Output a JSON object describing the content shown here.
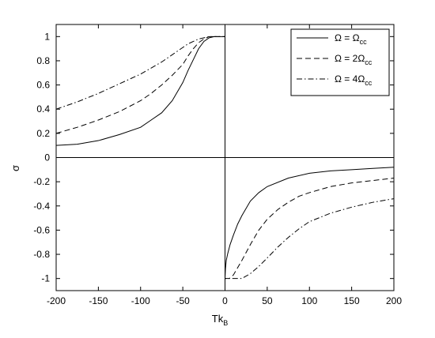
{
  "chart_data": {
    "type": "line",
    "xlabel": "Tk",
    "xlabel_sub": "B",
    "ylabel": "σ",
    "xlim": [
      -200,
      200
    ],
    "ylim": [
      -1.1,
      1.1
    ],
    "xticks": [
      -200,
      -150,
      -100,
      -50,
      0,
      50,
      100,
      150,
      200
    ],
    "yticks": [
      -1,
      -0.8,
      -0.6,
      -0.4,
      -0.2,
      0,
      0.2,
      0.4,
      0.6,
      0.8,
      1
    ],
    "grid": false,
    "legend_position": "top-right",
    "series": [
      {
        "name": "Ω = Ω_cc",
        "legend": {
          "lhs": "Ω = Ω",
          "sub": "cc"
        },
        "style": "solid",
        "x": [
          -200,
          -175,
          -150,
          -125,
          -100,
          -87.5,
          -75,
          -62.5,
          -50,
          -43.75,
          -37.5,
          -31.25,
          -25,
          -18.75,
          -12.5,
          -6.25,
          0,
          0,
          0.5,
          1.5,
          3,
          6,
          10,
          15,
          20,
          30,
          40,
          50,
          75,
          100,
          125,
          150,
          175,
          200
        ],
        "y": [
          0.1,
          0.11,
          0.14,
          0.19,
          0.25,
          0.31,
          0.37,
          0.47,
          0.62,
          0.72,
          0.81,
          0.9,
          0.96,
          0.99,
          1.0,
          1.0,
          1.0,
          -1.0,
          -0.92,
          -0.85,
          -0.8,
          -0.72,
          -0.64,
          -0.55,
          -0.48,
          -0.36,
          -0.29,
          -0.24,
          -0.17,
          -0.13,
          -0.11,
          -0.1,
          -0.09,
          -0.08
        ]
      },
      {
        "name": "Ω = 2Ω_cc",
        "legend": {
          "lhs": "Ω = 2Ω",
          "sub": "cc"
        },
        "style": "dashed",
        "x": [
          -200,
          -175,
          -150,
          -125,
          -100,
          -87.5,
          -75,
          -62.5,
          -50,
          -43.75,
          -37.5,
          -31.25,
          -25,
          -18.75,
          -12.5,
          -6.25,
          0,
          0,
          5,
          10,
          20,
          30,
          40,
          50,
          62.5,
          75,
          87.5,
          100,
          125,
          150,
          175,
          200
        ],
        "y": [
          0.2,
          0.25,
          0.31,
          0.38,
          0.47,
          0.53,
          0.6,
          0.68,
          0.77,
          0.84,
          0.9,
          0.95,
          0.98,
          1.0,
          1.0,
          1.0,
          1.0,
          -1.0,
          -1.0,
          -0.97,
          -0.85,
          -0.72,
          -0.6,
          -0.51,
          -0.43,
          -0.37,
          -0.32,
          -0.29,
          -0.24,
          -0.21,
          -0.19,
          -0.17
        ]
      },
      {
        "name": "Ω = 4Ω_cc",
        "legend": {
          "lhs": "Ω = 4Ω",
          "sub": "cc"
        },
        "style": "dashdot",
        "x": [
          -200,
          -175,
          -150,
          -125,
          -100,
          -87.5,
          -75,
          -62.5,
          -50,
          -43.75,
          -37.5,
          -31.25,
          -25,
          -18.75,
          -12.5,
          -6.25,
          0,
          0,
          5,
          10,
          15,
          20,
          25,
          30,
          40,
          50,
          62.5,
          75,
          87.5,
          100,
          125,
          150,
          175,
          200
        ],
        "y": [
          0.4,
          0.46,
          0.53,
          0.61,
          0.69,
          0.74,
          0.79,
          0.85,
          0.91,
          0.94,
          0.96,
          0.98,
          0.99,
          1.0,
          1.0,
          1.0,
          1.0,
          -1.0,
          -1.0,
          -1.0,
          -1.0,
          -1.0,
          -0.98,
          -0.96,
          -0.9,
          -0.83,
          -0.74,
          -0.66,
          -0.59,
          -0.53,
          -0.46,
          -0.41,
          -0.37,
          -0.34
        ]
      }
    ]
  }
}
